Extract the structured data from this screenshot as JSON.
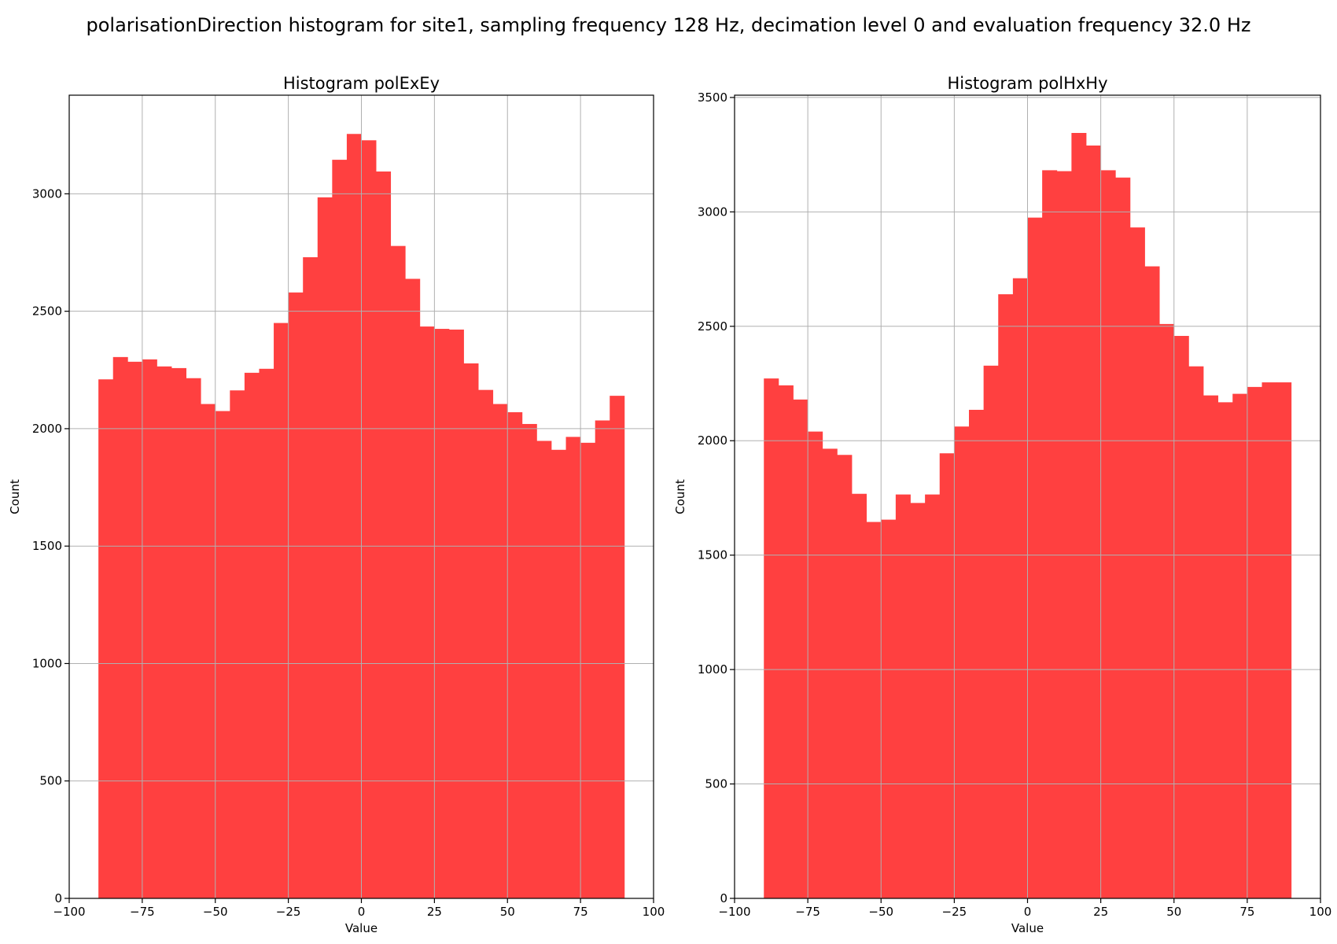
{
  "suptitle": "polarisationDirection histogram for site1, sampling frequency 128 Hz, decimation level 0 and evaluation frequency 32.0 Hz",
  "colors": {
    "bar": "#ff4040",
    "grid": "#b0b0b0",
    "axis": "#000000"
  },
  "chart_data": [
    {
      "type": "bar",
      "title": "Histogram polExEy",
      "xlabel": "Value",
      "ylabel": "Count",
      "xlim": [
        -100,
        100
      ],
      "ylim": [
        0,
        3420
      ],
      "xticks": [
        -100,
        -75,
        -50,
        -25,
        0,
        25,
        50,
        75,
        100
      ],
      "yticks": [
        0,
        500,
        1000,
        1500,
        2000,
        2500,
        3000
      ],
      "grid": true,
      "bin_range": [
        -90,
        90
      ],
      "values": [
        2210,
        2305,
        2285,
        2295,
        2265,
        2258,
        2215,
        2105,
        2075,
        2163,
        2238,
        2255,
        2450,
        2580,
        2730,
        2985,
        3145,
        3255,
        3228,
        3095,
        2778,
        2638,
        2435,
        2425,
        2422,
        2278,
        2165,
        2105,
        2070,
        2020,
        1948,
        1910,
        1965,
        1940,
        2035,
        2140
      ]
    },
    {
      "type": "bar",
      "title": "Histogram polHxHy",
      "xlabel": "Value",
      "ylabel": "Count",
      "xlim": [
        -100,
        100
      ],
      "ylim": [
        0,
        3510
      ],
      "xticks": [
        -100,
        -75,
        -50,
        -25,
        0,
        25,
        50,
        75,
        100
      ],
      "yticks": [
        0,
        500,
        1000,
        1500,
        2000,
        2500,
        3000,
        3500
      ],
      "grid": true,
      "bin_range": [
        -90,
        90
      ],
      "values": [
        2272,
        2242,
        2180,
        2040,
        1965,
        1938,
        1768,
        1645,
        1655,
        1765,
        1728,
        1765,
        1945,
        2062,
        2135,
        2328,
        2640,
        2710,
        2975,
        3182,
        3178,
        3345,
        3290,
        3182,
        3150,
        2932,
        2762,
        2510,
        2458,
        2325,
        2198,
        2168,
        2205,
        2235,
        2255,
        2255
      ]
    }
  ]
}
